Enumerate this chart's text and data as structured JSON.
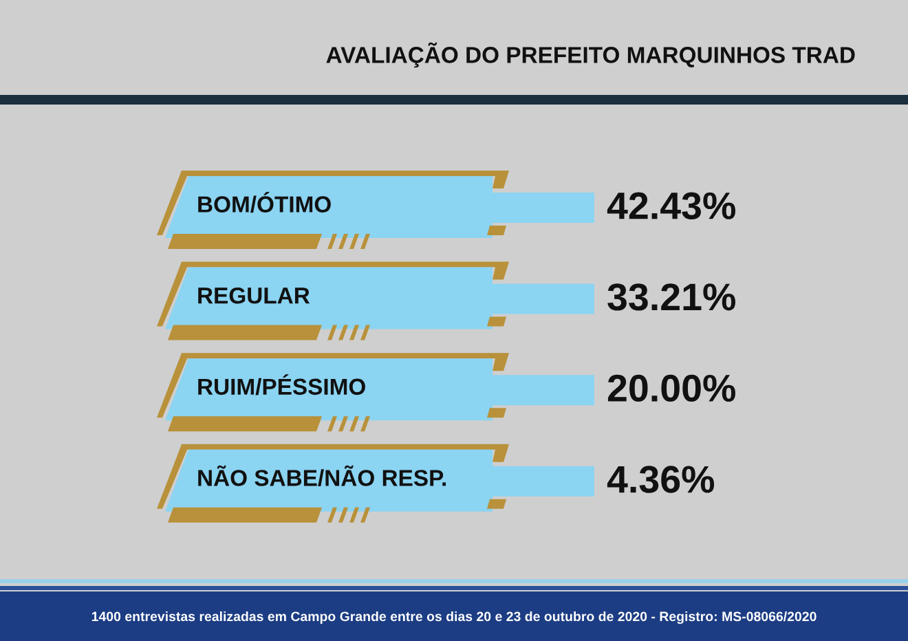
{
  "chart_data": {
    "type": "other",
    "title": "AVALIAÇÃO DO PREFEITO MARQUINHOS TRAD",
    "categories": [
      "BOM/ÓTIMO",
      "REGULAR",
      "RUIM/PÉSSIMO",
      "NÃO SABE/NÃO RESP."
    ],
    "values": [
      42.43,
      33.21,
      20.0,
      4.36
    ],
    "value_labels": [
      "42.43%",
      "33.21%",
      "20.00%",
      "4.36%"
    ],
    "annotations": [
      "1400 entrevistas realizadas em Campo Grande entre os dias 20 e 23 de outubro de 2020 - Registro: MS-08066/2020"
    ]
  }
}
